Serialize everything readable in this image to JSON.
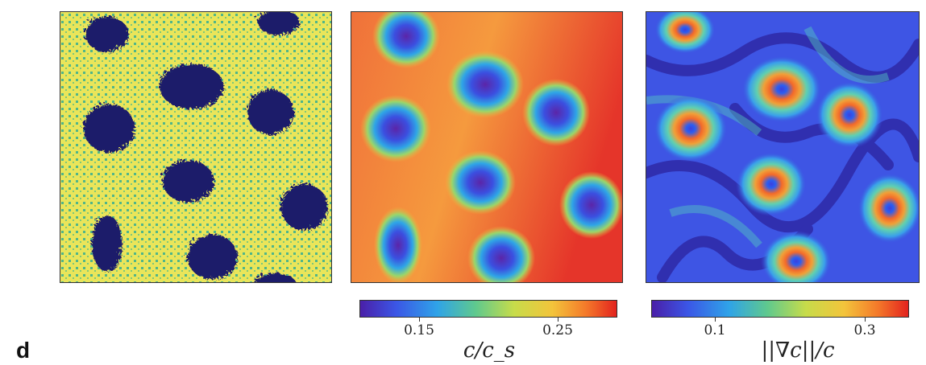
{
  "panel_letter": "d",
  "colorbar_concentration": {
    "label": "c/c_s",
    "ticks": [
      "0.15",
      "0.25"
    ]
  },
  "colorbar_gradient": {
    "label": "||∇c||/c",
    "ticks": [
      "0.1",
      "0.3"
    ]
  },
  "colors": {
    "yellow_phase": "#e9e55a",
    "dark_blob": "#1d1a6a",
    "speckle": "#4fb58a",
    "warm_background": "#f08a3a",
    "cool_background": "#3a4be0"
  }
}
